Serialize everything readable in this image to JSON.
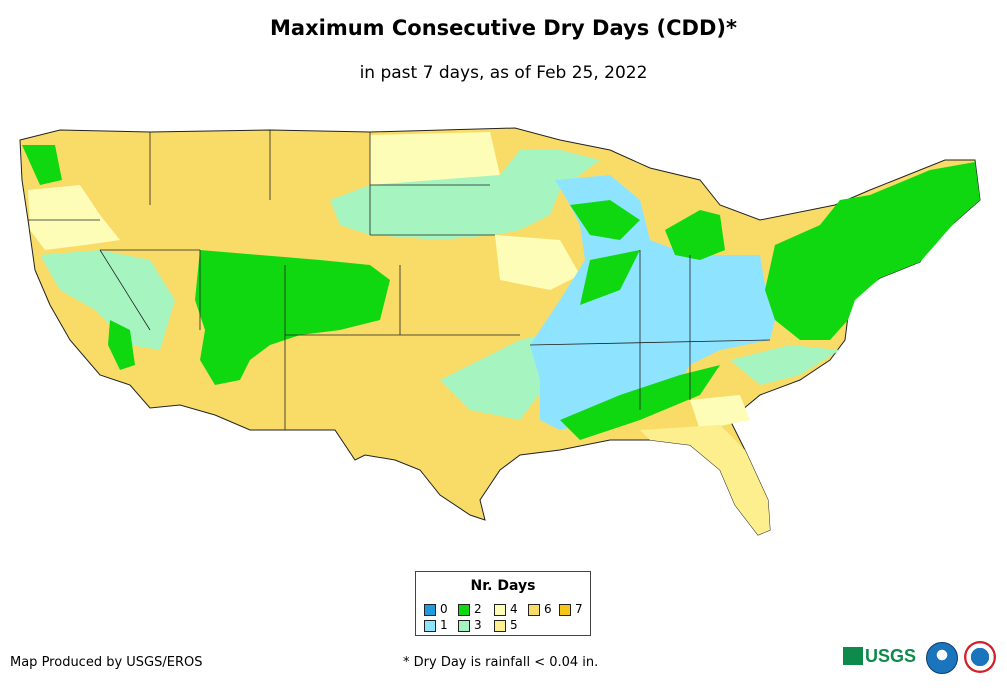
{
  "title": "Maximum Consecutive Dry Days (CDD)*",
  "subtitle": "in past 7 days, as of Feb 25, 2022",
  "legend": {
    "title": "Nr. Days",
    "items": [
      {
        "label": "0",
        "color": "#1f9bde"
      },
      {
        "label": "1",
        "color": "#8ee4ff"
      },
      {
        "label": "2",
        "color": "#10d810"
      },
      {
        "label": "3",
        "color": "#a6f5c0"
      },
      {
        "label": "4",
        "color": "#fdfdb8"
      },
      {
        "label": "5",
        "color": "#fdee8e"
      },
      {
        "label": "6",
        "color": "#f9dc68"
      },
      {
        "label": "7",
        "color": "#f6c51a"
      }
    ]
  },
  "credit": "Map Produced by USGS/EROS",
  "footnote": "* Dry Day is rainfall < 0.04 in.",
  "logos": {
    "usgs": "USGS"
  }
}
